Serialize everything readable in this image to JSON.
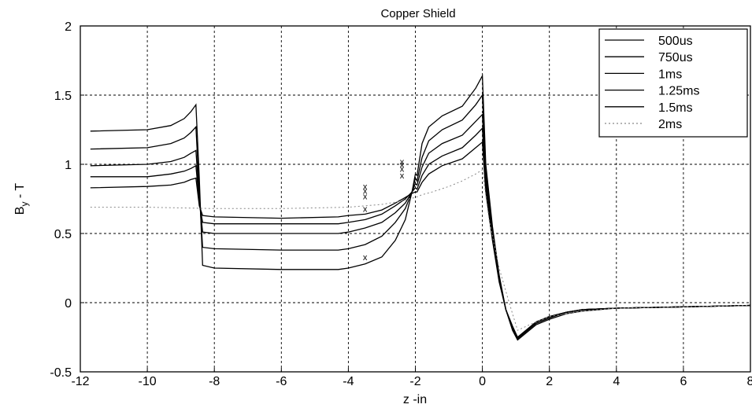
{
  "chart_data": {
    "type": "line",
    "title": "Copper Shield",
    "xlabel": "z -in",
    "ylabel_main": "B",
    "ylabel_sub": "y",
    "ylabel_rest": " - T",
    "xlim": [
      -12,
      8
    ],
    "ylim": [
      -0.5,
      2
    ],
    "xticks": [
      -12,
      -10,
      -8,
      -6,
      -4,
      -2,
      0,
      2,
      4,
      6,
      8
    ],
    "yticks": [
      -0.5,
      0,
      0.5,
      1,
      1.5,
      2
    ],
    "xtick_labels": [
      "-12",
      "-10",
      "-8",
      "-6",
      "-4",
      "-2",
      "0",
      "2",
      "4",
      "6",
      "8"
    ],
    "ytick_labels": [
      "-0.5",
      "0",
      "0.5",
      "1",
      "1.5",
      "2"
    ],
    "grid": true,
    "legend_position": "top-right",
    "series": [
      {
        "name": "500us",
        "color": "#000000",
        "dashed": false,
        "x": [
          -11.7,
          -10,
          -9.3,
          -8.9,
          -8.7,
          -8.55,
          -8.45,
          -8.35,
          -8.0,
          -6,
          -4.3,
          -4.0,
          -3.5,
          -3.0,
          -2.6,
          -2.3,
          -2.1,
          -2.0,
          -1.95,
          -1.8,
          -1.6,
          -1.2,
          -0.6,
          -0.2,
          0.0,
          0.1,
          0.3,
          0.5,
          0.7,
          0.9,
          1.05,
          1.3,
          1.6,
          2.0,
          2.5,
          3.0,
          4.0,
          6.0,
          8.0
        ],
        "y": [
          1.24,
          1.25,
          1.28,
          1.33,
          1.38,
          1.43,
          0.9,
          0.27,
          0.25,
          0.24,
          0.24,
          0.25,
          0.28,
          0.33,
          0.45,
          0.6,
          0.8,
          0.93,
          0.92,
          1.15,
          1.27,
          1.35,
          1.42,
          1.55,
          1.64,
          1.0,
          0.55,
          0.2,
          -0.05,
          -0.2,
          -0.27,
          -0.22,
          -0.16,
          -0.12,
          -0.08,
          -0.06,
          -0.04,
          -0.03,
          -0.02
        ]
      },
      {
        "name": "750us",
        "color": "#000000",
        "dashed": false,
        "x": [
          -11.7,
          -10,
          -9.3,
          -8.9,
          -8.7,
          -8.55,
          -8.45,
          -8.35,
          -8.0,
          -6,
          -4.3,
          -4.0,
          -3.5,
          -3.0,
          -2.6,
          -2.3,
          -2.1,
          -2.0,
          -1.95,
          -1.8,
          -1.6,
          -1.2,
          -0.6,
          -0.2,
          0.0,
          0.1,
          0.3,
          0.5,
          0.7,
          0.9,
          1.05,
          1.3,
          1.6,
          2.0,
          2.5,
          3.0,
          4.0,
          6.0,
          8.0
        ],
        "y": [
          1.11,
          1.12,
          1.15,
          1.19,
          1.23,
          1.27,
          0.8,
          0.4,
          0.39,
          0.38,
          0.38,
          0.39,
          0.42,
          0.48,
          0.58,
          0.68,
          0.8,
          0.9,
          0.88,
          1.05,
          1.17,
          1.25,
          1.32,
          1.43,
          1.5,
          0.95,
          0.52,
          0.18,
          -0.05,
          -0.19,
          -0.26,
          -0.21,
          -0.15,
          -0.11,
          -0.07,
          -0.05,
          -0.04,
          -0.03,
          -0.02
        ]
      },
      {
        "name": "1ms",
        "color": "#000000",
        "dashed": false,
        "x": [
          -11.7,
          -10,
          -9.3,
          -8.9,
          -8.7,
          -8.55,
          -8.45,
          -8.35,
          -8.0,
          -6,
          -4.3,
          -4.0,
          -3.5,
          -3.0,
          -2.6,
          -2.3,
          -2.1,
          -2.0,
          -1.95,
          -1.8,
          -1.6,
          -1.2,
          -0.6,
          -0.2,
          0.0,
          0.1,
          0.3,
          0.5,
          0.7,
          0.9,
          1.05,
          1.3,
          1.6,
          2.0,
          2.5,
          3.0,
          4.0,
          6.0,
          8.0
        ],
        "y": [
          0.99,
          1.0,
          1.02,
          1.05,
          1.08,
          1.1,
          0.75,
          0.51,
          0.5,
          0.5,
          0.5,
          0.51,
          0.54,
          0.58,
          0.65,
          0.72,
          0.8,
          0.86,
          0.85,
          0.98,
          1.08,
          1.15,
          1.21,
          1.31,
          1.36,
          0.9,
          0.5,
          0.17,
          -0.05,
          -0.18,
          -0.26,
          -0.21,
          -0.15,
          -0.11,
          -0.07,
          -0.05,
          -0.04,
          -0.03,
          -0.02
        ]
      },
      {
        "name": "1.25ms",
        "color": "#000000",
        "dashed": false,
        "x": [
          -11.7,
          -10,
          -9.3,
          -8.9,
          -8.7,
          -8.55,
          -8.45,
          -8.35,
          -8.0,
          -6,
          -4.3,
          -4.0,
          -3.5,
          -3.0,
          -2.6,
          -2.3,
          -2.1,
          -2.0,
          -1.95,
          -1.8,
          -1.6,
          -1.2,
          -0.6,
          -0.2,
          0.0,
          0.1,
          0.3,
          0.5,
          0.7,
          0.9,
          1.05,
          1.3,
          1.6,
          2.0,
          2.5,
          3.0,
          4.0,
          6.0,
          8.0
        ],
        "y": [
          0.91,
          0.91,
          0.93,
          0.95,
          0.97,
          0.99,
          0.72,
          0.58,
          0.57,
          0.57,
          0.57,
          0.58,
          0.6,
          0.64,
          0.7,
          0.75,
          0.8,
          0.83,
          0.82,
          0.92,
          1.0,
          1.06,
          1.12,
          1.21,
          1.26,
          0.85,
          0.48,
          0.16,
          -0.05,
          -0.18,
          -0.25,
          -0.2,
          -0.14,
          -0.1,
          -0.07,
          -0.05,
          -0.04,
          -0.03,
          -0.02
        ]
      },
      {
        "name": "1.5ms",
        "color": "#000000",
        "dashed": false,
        "x": [
          -11.7,
          -10,
          -9.3,
          -8.9,
          -8.7,
          -8.55,
          -8.45,
          -8.35,
          -8.0,
          -6,
          -4.3,
          -4.0,
          -3.5,
          -3.0,
          -2.6,
          -2.3,
          -2.1,
          -2.0,
          -1.95,
          -1.8,
          -1.6,
          -1.2,
          -0.6,
          -0.2,
          0.0,
          0.1,
          0.3,
          0.5,
          0.7,
          0.9,
          1.05,
          1.3,
          1.6,
          2.0,
          2.5,
          3.0,
          4.0,
          6.0,
          8.0
        ],
        "y": [
          0.83,
          0.84,
          0.85,
          0.87,
          0.89,
          0.9,
          0.7,
          0.63,
          0.62,
          0.61,
          0.62,
          0.63,
          0.64,
          0.67,
          0.72,
          0.76,
          0.79,
          0.8,
          0.8,
          0.87,
          0.93,
          0.99,
          1.04,
          1.12,
          1.16,
          0.8,
          0.45,
          0.15,
          -0.05,
          -0.17,
          -0.25,
          -0.2,
          -0.14,
          -0.1,
          -0.07,
          -0.05,
          -0.04,
          -0.03,
          -0.02
        ]
      },
      {
        "name": "2ms",
        "color": "#888888",
        "dashed": true,
        "x": [
          -11.7,
          -10,
          -8.0,
          -6,
          -4.0,
          -3.0,
          -2.5,
          -2.2,
          -2.0,
          -1.8,
          -1.5,
          -1.0,
          -0.6,
          -0.2,
          0.0,
          0.2,
          0.5,
          0.8,
          1.05,
          1.4,
          2.0,
          3.0,
          4.0,
          6.0,
          8.0
        ],
        "y": [
          0.69,
          0.69,
          0.68,
          0.68,
          0.69,
          0.71,
          0.73,
          0.75,
          0.76,
          0.78,
          0.8,
          0.84,
          0.88,
          0.93,
          0.96,
          0.6,
          0.25,
          0.0,
          -0.2,
          -0.16,
          -0.1,
          -0.06,
          -0.04,
          -0.03,
          -0.02
        ]
      }
    ],
    "markers": {
      "symbol": "x",
      "points": [
        {
          "x": -3.5,
          "y": 0.33
        },
        {
          "x": -3.5,
          "y": 0.68
        },
        {
          "x": -3.5,
          "y": 0.77
        },
        {
          "x": -3.5,
          "y": 0.81
        },
        {
          "x": -3.5,
          "y": 0.84
        },
        {
          "x": -2.4,
          "y": 0.92
        },
        {
          "x": -2.4,
          "y": 0.97
        },
        {
          "x": -2.4,
          "y": 1.0
        },
        {
          "x": -2.4,
          "y": 1.02
        }
      ]
    }
  }
}
